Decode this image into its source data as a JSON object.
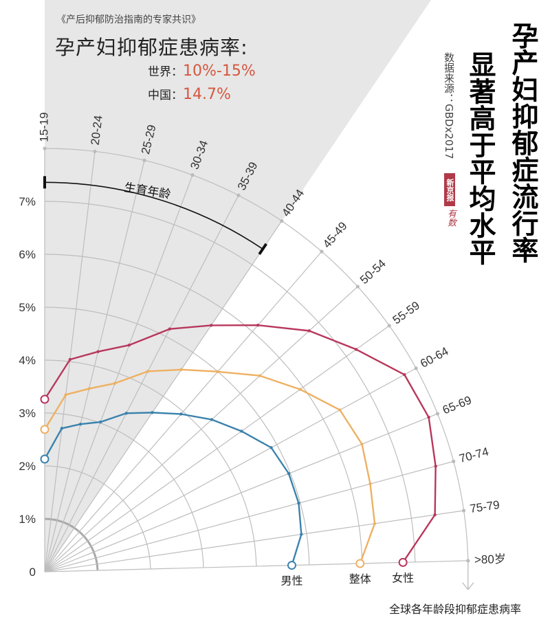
{
  "header": {
    "source_book": "《产后抑郁防治指南的专家共识》",
    "headline": "孕产妇抑郁症患病率:",
    "world_label": "世界：",
    "world_value": "10%-15%",
    "china_label": "中国：",
    "china_value": "14.7%"
  },
  "side": {
    "title_line1": "孕产妇抑郁症流行率",
    "title_line2": "显著高于平均水平",
    "source": "数据来源：GBDx2017",
    "logo_text": "新京报",
    "logo_sub": "有数"
  },
  "colors": {
    "female": "#b8375c",
    "total": "#eeb062",
    "male": "#3a82ad",
    "grid": "#bdbdbd",
    "wedge": "#e7e7e7",
    "accent": "#d5573f"
  },
  "chart_data": {
    "type": "polar-line",
    "title": "全球各年龄段抑郁症患病率",
    "categories": [
      "15-19",
      "20-24",
      "25-29",
      "30-34",
      "35-39",
      "40-44",
      "45-49",
      "50-54",
      "55-59",
      "60-64",
      "65-69",
      "70-74",
      "75-79",
      ">80岁"
    ],
    "radial_ticks": [
      "0",
      "1%",
      "2%",
      "3%",
      "4%",
      "5%",
      "6%",
      "7%"
    ],
    "radial_range": [
      0,
      8
    ],
    "bracket": {
      "label": "生育年龄",
      "from": "15-19",
      "to": "40-44",
      "highlighted": true
    },
    "series": [
      {
        "name": "女性",
        "color": "#b8375c",
        "values": [
          3.26,
          4.04,
          4.28,
          4.57,
          5.16,
          5.62,
          6.16,
          6.76,
          7.23,
          7.75,
          7.82,
          7.65,
          7.45,
          6.77
        ]
      },
      {
        "name": "整体",
        "color": "#eeb062",
        "values": [
          2.69,
          3.37,
          3.56,
          3.8,
          4.26,
          4.61,
          5.0,
          5.5,
          5.93,
          6.36,
          6.46,
          6.37,
          6.3,
          5.96
        ]
      },
      {
        "name": "男性",
        "color": "#3a82ad",
        "values": [
          2.13,
          2.73,
          2.87,
          3.02,
          3.37,
          3.63,
          3.94,
          4.27,
          4.57,
          4.88,
          4.97,
          4.97,
          4.9,
          4.67
        ]
      }
    ]
  }
}
